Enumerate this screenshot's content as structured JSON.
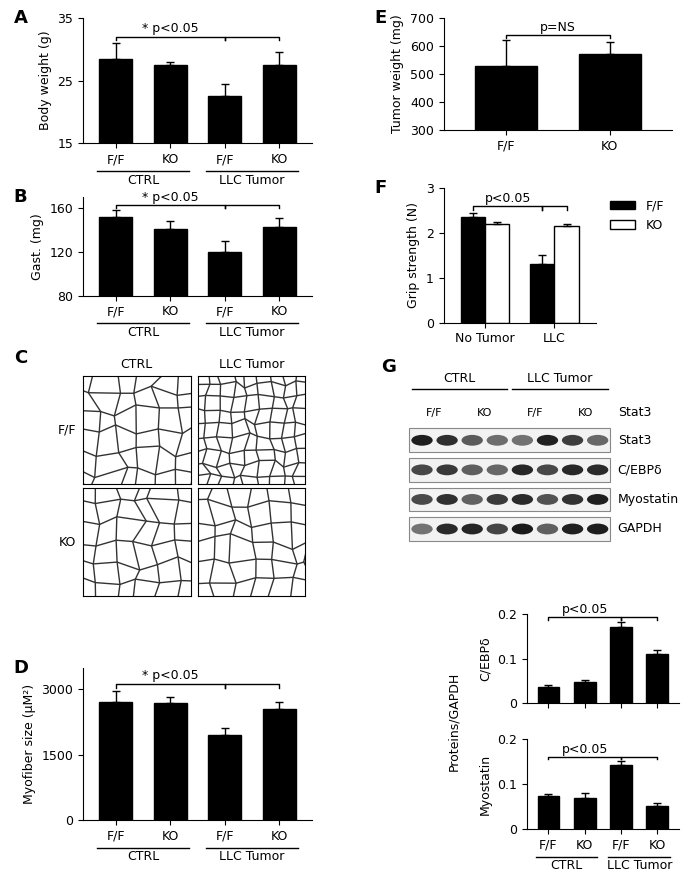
{
  "chart_data": [
    {
      "panel": "A",
      "type": "bar",
      "y_label": "Body weight (g)",
      "categories": [
        "F/F",
        "KO",
        "F/F",
        "KO"
      ],
      "groups": [
        "CTRL",
        "LLC Tumor"
      ],
      "values": [
        28.5,
        27.5,
        22.5,
        27.5
      ],
      "errors": [
        2.5,
        0.5,
        2.0,
        2.0
      ],
      "color": "#000000",
      "ylim": [
        15,
        35
      ],
      "yticks": [
        15,
        25,
        35
      ],
      "annotations": [
        {
          "text": "* p<0.05",
          "from": 0,
          "to": 2
        },
        {
          "from": 2,
          "to": 3
        }
      ]
    },
    {
      "panel": "B",
      "type": "bar",
      "y_label": "Gast. (mg)",
      "categories": [
        "F/F",
        "KO",
        "F/F",
        "KO"
      ],
      "groups": [
        "CTRL",
        "LLC Tumor"
      ],
      "values": [
        152,
        141,
        120,
        143
      ],
      "errors": [
        6,
        7,
        10,
        8
      ],
      "color": "#000000",
      "ylim": [
        80,
        170
      ],
      "yticks": [
        80,
        120,
        160
      ],
      "annotations": [
        {
          "text": "* p<0.05",
          "from": 0,
          "to": 2
        },
        {
          "from": 2,
          "to": 3
        }
      ]
    },
    {
      "panel": "D",
      "type": "bar",
      "y_label": "Myofiber size (μM²)",
      "categories": [
        "F/F",
        "KO",
        "F/F",
        "KO"
      ],
      "groups": [
        "CTRL",
        "LLC Tumor"
      ],
      "values": [
        2700,
        2680,
        1950,
        2550
      ],
      "errors": [
        250,
        150,
        150,
        150
      ],
      "color": "#000000",
      "ylim": [
        0,
        3500
      ],
      "yticks": [
        0,
        1500,
        3000
      ],
      "annotations": [
        {
          "text": "* p<0.05",
          "from": 0,
          "to": 2
        },
        {
          "from": 2,
          "to": 3
        }
      ]
    },
    {
      "panel": "E",
      "type": "bar",
      "y_label": "Tumor weight (mg)",
      "categories": [
        "F/F",
        "KO"
      ],
      "values": [
        530,
        570
      ],
      "errors": [
        90,
        45
      ],
      "color": "#000000",
      "ylim": [
        300,
        700
      ],
      "yticks": [
        300,
        400,
        500,
        600,
        700
      ],
      "annotations": [
        {
          "text": "p=NS",
          "from": 0,
          "to": 1
        }
      ]
    },
    {
      "panel": "F",
      "type": "bar",
      "y_label": "Grip strength (N)",
      "categories": [
        "No Tumor",
        "LLC"
      ],
      "legend": "upper left",
      "series": [
        {
          "name": "F/F",
          "color": "#000000",
          "values": [
            2.35,
            1.3
          ],
          "errors": [
            0.1,
            0.2
          ]
        },
        {
          "name": "KO",
          "color": "#ffffff",
          "values": [
            2.2,
            2.15
          ],
          "errors": [
            0.05,
            0.05
          ]
        }
      ],
      "ylim": [
        0,
        3
      ],
      "yticks": [
        0,
        1,
        2,
        3
      ],
      "annotations": [
        {
          "text": "p<0.05",
          "from": [
            0,
            0
          ],
          "to": [
            0,
            1
          ]
        },
        {
          "from": [
            0,
            1
          ],
          "to": [
            1,
            1
          ]
        }
      ]
    },
    {
      "type": "bar",
      "y_label": "C/EBPδ",
      "tick_labels": "y",
      "categories": [
        "F/F",
        "KO",
        "F/F",
        "KO"
      ],
      "values": [
        0.037,
        0.048,
        0.17,
        0.11
      ],
      "errors": [
        0.005,
        0.005,
        0.012,
        0.008
      ],
      "color": "#000000",
      "ylim": [
        0,
        0.2
      ],
      "yticks": [
        0,
        0.1,
        0.2
      ],
      "annotations": [
        {
          "text": "p<0.05",
          "from": 0,
          "to": 2
        },
        {
          "from": 2,
          "to": 3
        }
      ]
    },
    {
      "type": "bar",
      "y_label": "Myostatin",
      "categories": [
        "F/F",
        "KO",
        "F/F",
        "KO"
      ],
      "groups": [
        "CTRL",
        "LLC Tumor"
      ],
      "values": [
        0.073,
        0.068,
        0.143,
        0.05
      ],
      "errors": [
        0.005,
        0.013,
        0.008,
        0.008
      ],
      "color": "#000000",
      "ylim": [
        0,
        0.2
      ],
      "yticks": [
        0,
        0.1,
        0.2
      ],
      "annotations": [
        {
          "text": "p<0.05",
          "from": 0,
          "to": 2
        },
        {
          "from": 2,
          "to": 3
        }
      ]
    }
  ],
  "micrographs": {
    "panel": "C",
    "columns": [
      "CTRL",
      "LLC Tumor"
    ],
    "rows": [
      "F/F",
      "KO"
    ]
  },
  "western_blot": {
    "panel": "G",
    "groups": [
      "CTRL",
      "LLC Tumor"
    ],
    "genotypes": [
      "F/F",
      "KO",
      "F/F",
      "KO"
    ],
    "genotype_label": "Stat3",
    "rows": [
      "Stat3",
      "C/EBPδ",
      "Myostatin",
      "GAPDH"
    ],
    "quantification_label": "Proteins/GAPDH"
  }
}
